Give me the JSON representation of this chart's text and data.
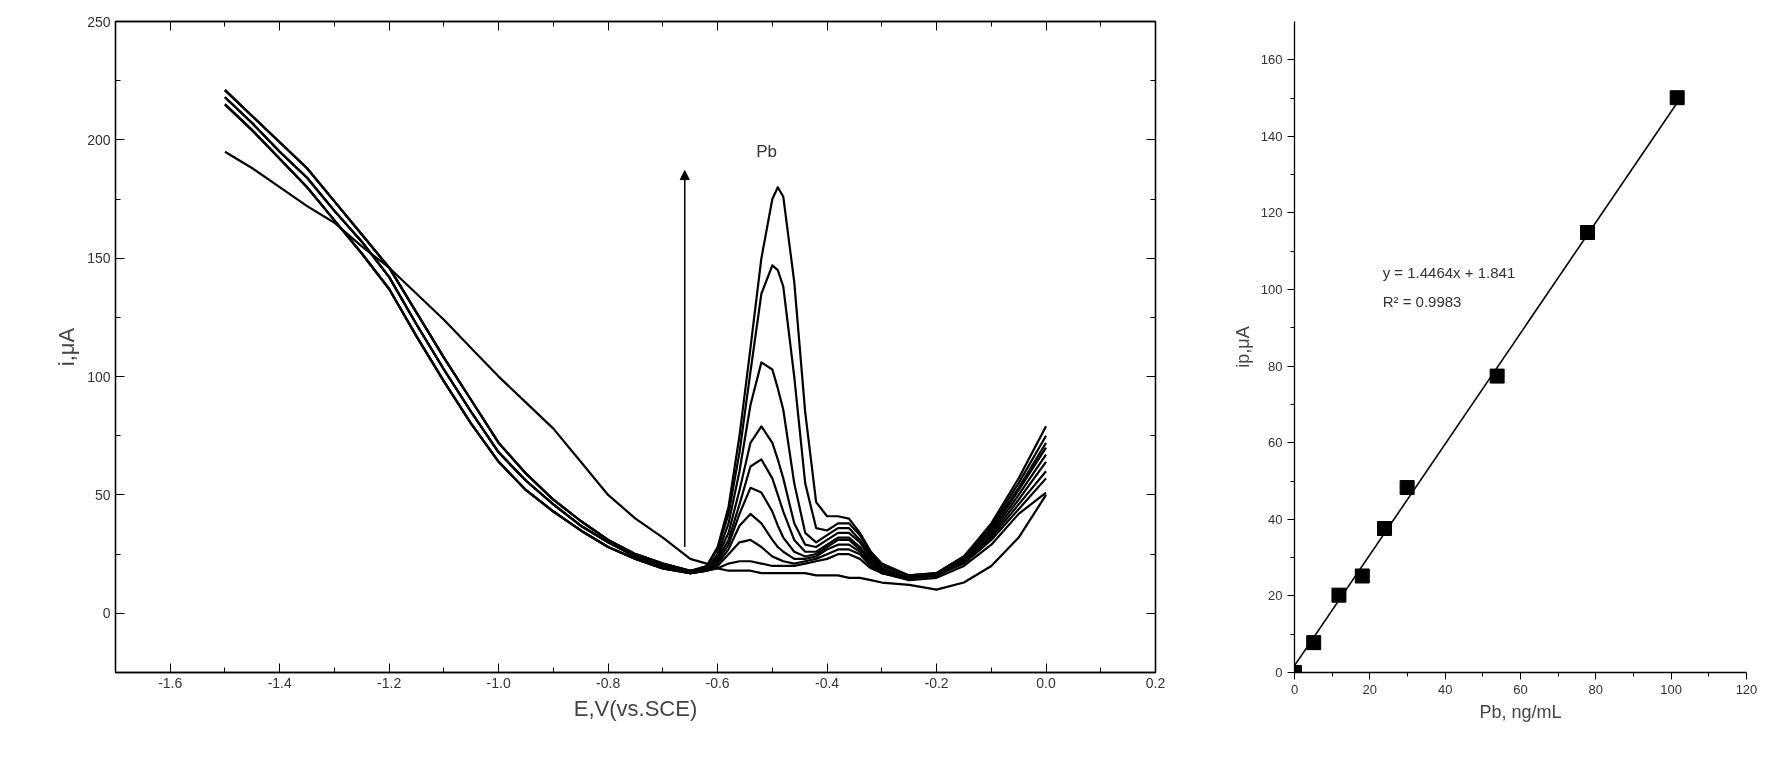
{
  "chart_data": [
    {
      "type": "line",
      "xlabel": "E,V(vs.SCE)",
      "ylabel": "i,μA",
      "xlim": [
        -1.7,
        0.2
      ],
      "ylim": [
        -25,
        250
      ],
      "xticks": [
        -1.6,
        -1.4,
        -1.2,
        {
          "value": -1,
          "label": "-1.0"
        },
        -0.8,
        -0.6,
        -0.4,
        -0.2,
        {
          "value": 0,
          "label": "0.0"
        },
        0.2
      ],
      "yticks": [
        0,
        50,
        100,
        150,
        200,
        250
      ],
      "grid": false,
      "line_style": "solid",
      "annotations": [
        "Pb"
      ],
      "x": [
        -1.5,
        -1.45,
        -1.4,
        -1.35,
        -1.3,
        -1.25,
        -1.2,
        -1.15,
        -1.1,
        -1.05,
        -1.0,
        -0.95,
        -0.9,
        -0.85,
        -0.8,
        -0.75,
        -0.7,
        -0.65,
        -0.62,
        -0.6,
        -0.58,
        -0.56,
        -0.54,
        -0.52,
        -0.5,
        -0.49,
        -0.48,
        -0.46,
        -0.44,
        -0.42,
        -0.4,
        -0.38,
        -0.36,
        -0.34,
        -0.32,
        -0.3,
        -0.25,
        -0.2,
        -0.15,
        -0.1,
        -0.05,
        0
      ],
      "series": [
        {
          "color": "#000000",
          "values": [
            195,
            188,
            180,
            172,
            165,
            155,
            146,
            135,
            124,
            112,
            100,
            89,
            78,
            64,
            50,
            40,
            32,
            23,
            21,
            19,
            18,
            18,
            18,
            17,
            17,
            17,
            17,
            17,
            17,
            16,
            16,
            16,
            15,
            15,
            14,
            13,
            12,
            10,
            13,
            20,
            32,
            50
          ]
        },
        {
          "color": "#000000",
          "values": [
            215,
            204,
            192,
            180,
            166,
            152,
            137,
            117,
            98,
            80,
            64,
            52,
            43,
            35,
            28,
            23,
            19,
            17,
            18,
            19,
            21,
            22,
            22,
            21,
            20,
            20,
            20,
            20,
            21,
            22,
            23,
            25,
            25,
            23,
            19,
            17,
            14,
            15,
            20,
            29,
            42,
            51
          ]
        },
        {
          "color": "#000000",
          "values": [
            218,
            207,
            195,
            184,
            170,
            157,
            142,
            122,
            103,
            85,
            68,
            56,
            46,
            37,
            30,
            24,
            20,
            17,
            18,
            20,
            25,
            30,
            31,
            28,
            24,
            23,
            22,
            21,
            22,
            23,
            25,
            27,
            27,
            25,
            20,
            17,
            15,
            16,
            21,
            31,
            44,
            57
          ]
        },
        {
          "color": "#000000",
          "values": [
            221,
            210,
            199,
            188,
            174,
            160,
            146,
            127,
            108,
            90,
            72,
            59,
            48,
            39,
            31,
            25,
            21,
            18,
            18,
            21,
            27,
            37,
            42,
            38,
            31,
            28,
            26,
            23,
            23,
            24,
            27,
            29,
            29,
            26,
            20,
            17,
            15,
            16,
            22,
            32,
            46,
            60
          ]
        },
        {
          "color": "#000000",
          "values": [
            215,
            204,
            192,
            180,
            166,
            152,
            137,
            117,
            98,
            80,
            64,
            52,
            43,
            35,
            28,
            23,
            19,
            17,
            18,
            22,
            29,
            42,
            53,
            51,
            43,
            37,
            32,
            26,
            24,
            25,
            28,
            31,
            31,
            27,
            21,
            18,
            15,
            16,
            22,
            33,
            48,
            64
          ]
        },
        {
          "color": "#000000",
          "values": [
            218,
            207,
            195,
            184,
            170,
            157,
            142,
            122,
            103,
            85,
            68,
            56,
            46,
            37,
            30,
            24,
            20,
            17,
            18,
            23,
            31,
            46,
            62,
            65,
            57,
            50,
            43,
            31,
            26,
            26,
            29,
            32,
            32,
            28,
            22,
            18,
            15,
            16,
            23,
            34,
            50,
            67
          ]
        },
        {
          "color": "#000000",
          "values": [
            221,
            210,
            199,
            188,
            174,
            160,
            146,
            127,
            108,
            90,
            72,
            59,
            48,
            39,
            31,
            25,
            21,
            18,
            19,
            24,
            34,
            52,
            72,
            79,
            72,
            65,
            57,
            38,
            29,
            28,
            31,
            34,
            34,
            30,
            23,
            19,
            15,
            16,
            23,
            35,
            52,
            70
          ]
        },
        {
          "color": "#000000",
          "values": [
            215,
            204,
            192,
            180,
            166,
            152,
            137,
            117,
            98,
            80,
            64,
            52,
            43,
            35,
            28,
            23,
            19,
            17,
            19,
            25,
            38,
            60,
            88,
            106,
            103,
            95,
            86,
            55,
            34,
            30,
            33,
            36,
            36,
            31,
            24,
            19,
            15,
            17,
            24,
            36,
            53,
            72
          ]
        },
        {
          "color": "#000000",
          "values": [
            218,
            207,
            195,
            184,
            170,
            157,
            142,
            122,
            103,
            85,
            68,
            56,
            46,
            37,
            30,
            24,
            20,
            17,
            20,
            27,
            42,
            68,
            102,
            135,
            147,
            145,
            138,
            100,
            55,
            36,
            35,
            38,
            38,
            33,
            25,
            20,
            16,
            17,
            24,
            37,
            55,
            75
          ]
        },
        {
          "color": "#000000",
          "values": [
            221,
            210,
            199,
            188,
            174,
            160,
            146,
            127,
            108,
            90,
            72,
            59,
            48,
            39,
            31,
            25,
            21,
            18,
            20,
            28,
            45,
            75,
            112,
            150,
            175,
            180,
            176,
            140,
            85,
            47,
            41,
            41,
            40,
            34,
            26,
            21,
            16,
            17,
            24,
            38,
            57,
            79
          ]
        }
      ]
    },
    {
      "type": "scatter",
      "xlabel": "Pb, ng/mL",
      "ylabel": "ip,μA",
      "xlim": [
        0,
        120
      ],
      "ylim": [
        0,
        170
      ],
      "xticks": [
        0,
        20,
        40,
        60,
        80,
        100,
        120
      ],
      "yticks": [
        0,
        20,
        40,
        60,
        80,
        100,
        120,
        140,
        160
      ],
      "grid": false,
      "annotations": [
        "y = 1.4464x + 1.841",
        "R² = 0.9983"
      ],
      "x": [
        0,
        5.1,
        11.8,
        18.0,
        23.9,
        29.9,
        53.8,
        77.8,
        101.6
      ],
      "series": [
        {
          "color": "#000000",
          "marker": "square",
          "values": [
            0,
            7.8,
            20.2,
            25.2,
            37.6,
            48.3,
            77.4,
            114.9,
            150.1
          ]
        },
        {
          "type": "line",
          "color": "#000000",
          "x": [
            0,
            101.6
          ],
          "values": [
            1.8,
            148.8
          ]
        }
      ]
    }
  ]
}
